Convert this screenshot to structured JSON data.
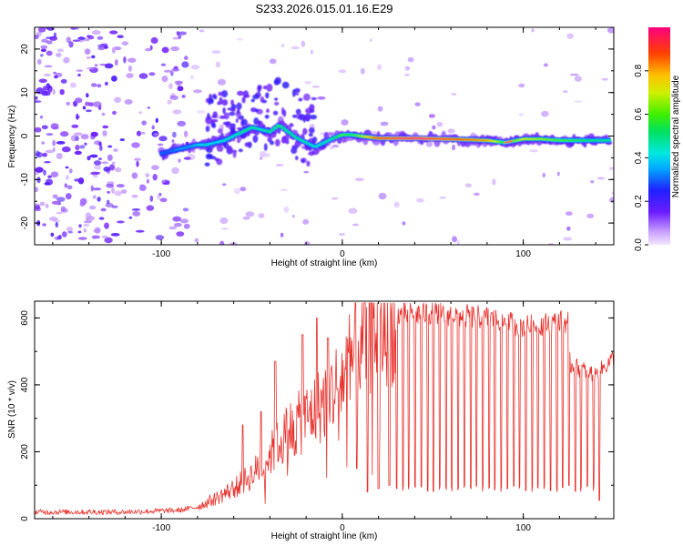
{
  "figure_title": "S233.2026.015.01.16.E29",
  "chart_data": [
    {
      "type": "heatmap",
      "title": "S233.2026.015.01.16.E29",
      "xlabel": "Height of straight line (km)",
      "ylabel": "Frequency (Hz)",
      "xlim": [
        -170,
        150
      ],
      "ylim": [
        -25,
        25
      ],
      "x_ticks": [
        -100,
        0,
        100
      ],
      "y_ticks": [
        -20,
        -10,
        0,
        10,
        20
      ],
      "x_tick_labels": [
        "-100",
        "0",
        "100"
      ],
      "y_tick_labels": [
        "-20",
        "-10",
        "0",
        "10",
        "20"
      ],
      "ridge": {
        "x": [
          -100,
          -95,
          -90,
          -85,
          -80,
          -75,
          -70,
          -65,
          -60,
          -55,
          -50,
          -45,
          -40,
          -35,
          -30,
          -25,
          -20,
          -15,
          -10,
          -5,
          0,
          5,
          10,
          20,
          40,
          60,
          80,
          90,
          100,
          110,
          120,
          130,
          140,
          148
        ],
        "y": [
          -4,
          -3.5,
          -3,
          -2.5,
          -2,
          -2,
          -1.5,
          -1,
          0,
          1,
          2,
          1.5,
          1,
          2.5,
          1,
          -0.5,
          -1.5,
          -2.5,
          -1.5,
          -0.5,
          0.3,
          0.3,
          0,
          -0.5,
          -0.5,
          -0.7,
          -1,
          -1.5,
          -0.7,
          -0.7,
          -1,
          -1,
          -1,
          -1
        ],
        "amplitude": [
          0.3,
          0.3,
          0.35,
          0.35,
          0.4,
          0.45,
          0.4,
          0.45,
          0.45,
          0.5,
          0.5,
          0.45,
          0.5,
          0.55,
          0.5,
          0.5,
          0.45,
          0.45,
          0.45,
          0.5,
          0.6,
          0.55,
          0.65,
          0.9,
          1.0,
          0.9,
          0.8,
          0.55,
          0.7,
          0.65,
          0.6,
          0.55,
          0.5,
          0.5
        ]
      }
    },
    {
      "type": "colorbar",
      "label": "Normalized spectral amplitude",
      "range": [
        0,
        1
      ],
      "ticks": [
        0.0,
        0.2,
        0.4,
        0.6,
        0.8
      ],
      "tick_labels": [
        "0.0",
        "0.2",
        "0.4",
        "0.6",
        "0.8"
      ]
    },
    {
      "type": "line",
      "xlabel": "Height of straight line (km)",
      "ylabel": "SNR (10 * v/v)",
      "xlim": [
        -170,
        150
      ],
      "ylim": [
        0,
        650
      ],
      "x_ticks": [
        -100,
        0,
        100
      ],
      "y_ticks": [
        0,
        200,
        400,
        600
      ],
      "x_tick_labels": [
        "-100",
        "0",
        "100"
      ],
      "y_tick_labels": [
        "0",
        "200",
        "400",
        "600"
      ],
      "color": "#e8312c",
      "envelope": {
        "x": [
          -170,
          -120,
          -90,
          -80,
          -70,
          -60,
          -50,
          -40,
          -30,
          -20,
          -10,
          0,
          10,
          20,
          30,
          50,
          80,
          100,
          125,
          126,
          140,
          150
        ],
        "y": [
          20,
          20,
          25,
          35,
          60,
          90,
          130,
          190,
          260,
          300,
          350,
          420,
          530,
          585,
          610,
          615,
          600,
          575,
          590,
          460,
          430,
          480
        ]
      },
      "spikes": [
        {
          "x": -14,
          "y": 600
        },
        {
          "x": -22,
          "y": 550
        },
        {
          "x": -37,
          "y": 470
        },
        {
          "x": -55,
          "y": 280
        },
        {
          "x": -45,
          "y": 320
        },
        {
          "x": -8,
          "y": 540
        }
      ],
      "dips": {
        "start": 30,
        "end": 142,
        "step": 3.4,
        "depth": 80,
        "extra": [
          {
            "x": 8,
            "y": 150
          },
          {
            "x": 14,
            "y": 80
          },
          {
            "x": 20,
            "y": 90
          },
          {
            "x": 26,
            "y": 100
          },
          {
            "x": 142,
            "y": 55
          }
        ]
      }
    }
  ]
}
